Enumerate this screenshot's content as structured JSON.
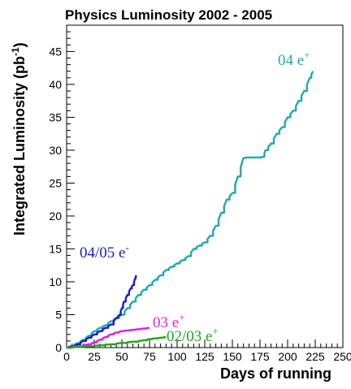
{
  "chart_data": {
    "type": "line",
    "title": "Physics Luminosity 2002 - 2005",
    "xlabel": "Days of running",
    "ylabel": "Integrated Luminosity (pb",
    "ylabel_sup": "-1",
    "ylabel_close": ")",
    "xlim": [
      0,
      250
    ],
    "ylim": [
      0,
      49
    ],
    "xticks": [
      0,
      25,
      50,
      75,
      100,
      125,
      150,
      175,
      200,
      225,
      250
    ],
    "yticks": [
      0,
      5,
      10,
      15,
      20,
      25,
      30,
      35,
      40,
      45
    ],
    "grid": false,
    "series": [
      {
        "name": "04 e+",
        "label_main": "04 e",
        "label_sup": "+",
        "color": "#22aaa6",
        "x": [
          0,
          5,
          10,
          15,
          20,
          25,
          30,
          35,
          40,
          45,
          50,
          55,
          60,
          65,
          70,
          75,
          80,
          85,
          90,
          95,
          100,
          105,
          110,
          115,
          120,
          125,
          130,
          135,
          140,
          145,
          150,
          155,
          160,
          163,
          170,
          175,
          178,
          180,
          185,
          190,
          195,
          200,
          205,
          210,
          215,
          220,
          223
        ],
        "y": [
          0,
          0.3,
          0.7,
          1.2,
          1.8,
          2.5,
          3.0,
          3.4,
          4.0,
          4.5,
          5.0,
          6.0,
          7.0,
          8.0,
          8.8,
          9.5,
          10.3,
          11.0,
          11.8,
          12.3,
          12.8,
          13.3,
          13.9,
          15.0,
          15.5,
          16.0,
          17.0,
          18.5,
          20.5,
          22.5,
          23.5,
          26.0,
          28.8,
          28.9,
          28.9,
          28.9,
          29.0,
          30.0,
          31.0,
          32.5,
          33.5,
          35.0,
          36.0,
          37.5,
          39.0,
          41.0,
          42.0
        ]
      },
      {
        "name": "04/05 e-",
        "label_main": "04/05 e",
        "label_sup": "-",
        "color": "#1a1ad6",
        "x": [
          0,
          5,
          10,
          15,
          20,
          25,
          30,
          35,
          40,
          45,
          48,
          50,
          52,
          55,
          58,
          60,
          62,
          63
        ],
        "y": [
          0,
          0.2,
          0.5,
          1.0,
          1.5,
          2.0,
          2.5,
          3.0,
          3.5,
          4.5,
          5.0,
          6.0,
          7.0,
          8.0,
          9.0,
          9.5,
          10.5,
          11.0
        ]
      },
      {
        "name": "03 e+",
        "label_main": "03 e",
        "label_sup": "+",
        "color": "#e21ee0",
        "x": [
          0,
          10,
          20,
          25,
          30,
          35,
          40,
          45,
          50,
          55,
          60,
          65,
          70,
          75
        ],
        "y": [
          0,
          0.2,
          0.5,
          0.8,
          1.2,
          1.6,
          2.0,
          2.3,
          2.5,
          2.6,
          2.7,
          2.8,
          2.9,
          3.0
        ]
      },
      {
        "name": "02/03 e+",
        "label_main": "02/03 e",
        "label_sup": "+",
        "color": "#1ea51e",
        "x": [
          0,
          10,
          20,
          30,
          40,
          50,
          60,
          70,
          75,
          80,
          85,
          90
        ],
        "y": [
          0,
          0.1,
          0.2,
          0.35,
          0.5,
          0.7,
          0.9,
          1.1,
          1.3,
          1.4,
          1.5,
          1.6
        ]
      }
    ]
  }
}
